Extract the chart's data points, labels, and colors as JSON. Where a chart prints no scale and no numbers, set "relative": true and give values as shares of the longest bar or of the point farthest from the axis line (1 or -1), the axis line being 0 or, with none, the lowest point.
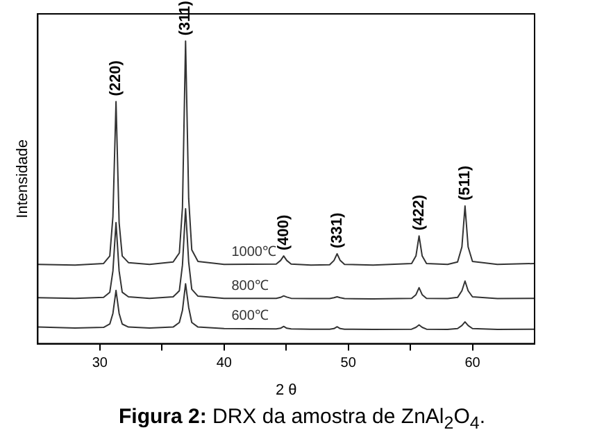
{
  "chart_data": {
    "type": "line",
    "relative": true,
    "xlabel": "2 θ",
    "ylabel": "Intensidade",
    "xlim": [
      25,
      65
    ],
    "xticks": [
      30,
      {
        "value": 35,
        "label": null
      },
      40,
      {
        "value": 45,
        "label": null
      },
      50,
      {
        "value": 55,
        "label": null
      },
      60
    ],
    "grid": false,
    "legend": false,
    "marker": "none",
    "line_style": "solid",
    "x": [
      25,
      28,
      30.3,
      30.8,
      31.05,
      31.3,
      31.55,
      31.8,
      32.3,
      34,
      35.9,
      36.4,
      36.65,
      36.9,
      37.15,
      37.4,
      37.9,
      40,
      44.2,
      44.55,
      44.8,
      45.05,
      45.4,
      47,
      48.5,
      48.85,
      49.1,
      49.35,
      49.7,
      52,
      55.1,
      55.45,
      55.7,
      55.95,
      56.3,
      58,
      58.8,
      59.15,
      59.4,
      59.65,
      60,
      62,
      65
    ],
    "series": [
      {
        "name": "1000℃",
        "color": "#333333",
        "values": [
          0.262,
          0.26,
          0.265,
          0.29,
          0.42,
          0.8,
          0.4,
          0.29,
          0.268,
          0.262,
          0.27,
          0.3,
          0.45,
          1,
          0.48,
          0.31,
          0.272,
          0.262,
          0.263,
          0.275,
          0.29,
          0.275,
          0.263,
          0.26,
          0.261,
          0.275,
          0.297,
          0.275,
          0.262,
          0.26,
          0.265,
          0.29,
          0.356,
          0.29,
          0.265,
          0.262,
          0.27,
          0.32,
          0.455,
          0.32,
          0.272,
          0.262,
          0.265
        ]
      },
      {
        "name": "800℃",
        "color": "#333333",
        "values": [
          0.152,
          0.15,
          0.153,
          0.17,
          0.24,
          0.4,
          0.24,
          0.17,
          0.155,
          0.15,
          0.155,
          0.175,
          0.26,
          0.446,
          0.27,
          0.18,
          0.157,
          0.15,
          0.15,
          0.153,
          0.158,
          0.154,
          0.15,
          0.149,
          0.149,
          0.152,
          0.155,
          0.152,
          0.149,
          0.148,
          0.15,
          0.162,
          0.185,
          0.162,
          0.15,
          0.149,
          0.153,
          0.175,
          0.207,
          0.175,
          0.155,
          0.149,
          0.15
        ]
      },
      {
        "name": "600℃",
        "color": "#333333",
        "values": [
          0.055,
          0.052,
          0.054,
          0.065,
          0.1,
          0.176,
          0.1,
          0.065,
          0.055,
          0.052,
          0.055,
          0.07,
          0.11,
          0.198,
          0.12,
          0.07,
          0.055,
          0.05,
          0.049,
          0.051,
          0.057,
          0.051,
          0.049,
          0.048,
          0.048,
          0.05,
          0.056,
          0.05,
          0.048,
          0.047,
          0.048,
          0.054,
          0.062,
          0.054,
          0.048,
          0.047,
          0.05,
          0.06,
          0.072,
          0.06,
          0.05,
          0.047,
          0.048
        ]
      }
    ],
    "annotations": [
      {
        "text": "(220)",
        "x": 31.3,
        "y": 0.8
      },
      {
        "text": "(311)",
        "x": 36.9,
        "y": 1
      },
      {
        "text": "(400)",
        "x": 44.8,
        "y": 0.29
      },
      {
        "text": "(331)",
        "x": 49.1,
        "y": 0.297
      },
      {
        "text": "(422)",
        "x": 55.7,
        "y": 0.356
      },
      {
        "text": "(511)",
        "x": 59.4,
        "y": 0.455
      },
      "Figura 2: DRX da amostra de ZnAl$_{2}$O$_{4}$."
    ]
  }
}
